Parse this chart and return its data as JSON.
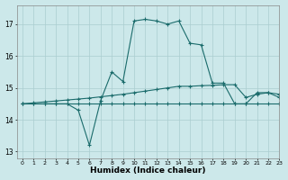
{
  "xlabel": "Humidex (Indice chaleur)",
  "background_color": "#cce8ea",
  "grid_color": "#aacdd0",
  "line_color": "#1a6b6b",
  "xlim": [
    -0.5,
    23
  ],
  "ylim": [
    12.8,
    17.6
  ],
  "yticks": [
    13,
    14,
    15,
    16,
    17
  ],
  "xticks": [
    0,
    1,
    2,
    3,
    4,
    5,
    6,
    7,
    8,
    9,
    10,
    11,
    12,
    13,
    14,
    15,
    16,
    17,
    18,
    19,
    20,
    21,
    22,
    23
  ],
  "series": [
    {
      "x": [
        0,
        1,
        2,
        3,
        4,
        5,
        6,
        7,
        8,
        9,
        10,
        11,
        12,
        13,
        14,
        15,
        16,
        17,
        18,
        19,
        20,
        21,
        22,
        23
      ],
      "y": [
        14.5,
        14.5,
        14.5,
        14.5,
        14.5,
        14.5,
        14.5,
        14.5,
        14.5,
        14.5,
        14.5,
        14.5,
        14.5,
        14.5,
        14.5,
        14.5,
        14.5,
        14.5,
        14.5,
        14.5,
        14.5,
        14.5,
        14.5,
        14.5
      ]
    },
    {
      "x": [
        0,
        1,
        2,
        3,
        4,
        5,
        6,
        7,
        8,
        9,
        10,
        11,
        12,
        13,
        14,
        15,
        16,
        17,
        18,
        19,
        20,
        21,
        22,
        23
      ],
      "y": [
        14.5,
        14.53,
        14.56,
        14.59,
        14.62,
        14.65,
        14.68,
        14.72,
        14.76,
        14.8,
        14.85,
        14.9,
        14.95,
        15.0,
        15.05,
        15.05,
        15.07,
        15.08,
        15.1,
        15.1,
        14.7,
        14.8,
        14.85,
        14.8
      ]
    },
    {
      "x": [
        0,
        1,
        2,
        3,
        4,
        5,
        6,
        7,
        8,
        9,
        10,
        11,
        12,
        13,
        14,
        15,
        16,
        17,
        18,
        19,
        20,
        21,
        22,
        23
      ],
      "y": [
        14.5,
        14.5,
        14.5,
        14.5,
        14.5,
        14.3,
        13.2,
        14.6,
        15.5,
        15.2,
        17.1,
        17.15,
        17.1,
        17.0,
        17.1,
        16.4,
        16.35,
        15.15,
        15.15,
        14.5,
        14.5,
        14.85,
        14.85,
        14.7
      ]
    }
  ]
}
